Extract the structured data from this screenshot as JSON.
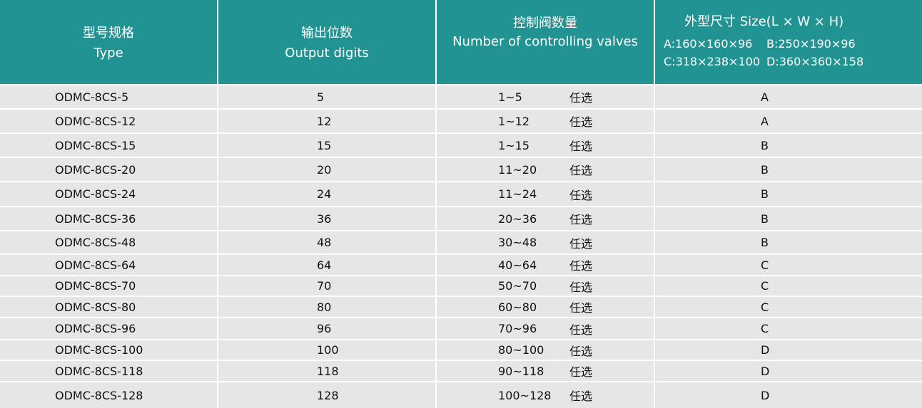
{
  "header": {
    "type": {
      "zh": "型号规格",
      "en": "Type"
    },
    "digits": {
      "zh": "输出位数",
      "en": "Output digits"
    },
    "valves": {
      "zh": "控制阀数量",
      "en": "Number of controlling valves"
    },
    "size": {
      "title": "外型尺寸 Size(L × W × H)",
      "a": "A:160×160×96",
      "b": "B:250×190×96",
      "c": "C:318×238×100",
      "d": "D:360×360×158"
    }
  },
  "colors": {
    "header_bg": "#229393",
    "row_bg": "#e6e6e6"
  },
  "rows": [
    {
      "type": "ODMC-8CS-5",
      "digits": "5",
      "range": "1~5",
      "opt": "任选",
      "size": "A"
    },
    {
      "type": "ODMC-8CS-12",
      "digits": "12",
      "range": "1~12",
      "opt": "任选",
      "size": "A"
    },
    {
      "type": "ODMC-8CS-15",
      "digits": "15",
      "range": "1~15",
      "opt": "任选",
      "size": "B"
    },
    {
      "type": "ODMC-8CS-20",
      "digits": "20",
      "range": "11~20",
      "opt": "任选",
      "size": "B"
    },
    {
      "type": "ODMC-8CS-24",
      "digits": "24",
      "range": "11~24",
      "opt": "任选",
      "size": "B"
    },
    {
      "type": "ODMC-8CS-36",
      "digits": "36",
      "range": "20~36",
      "opt": "任选",
      "size": "B"
    },
    {
      "type": "ODMC-8CS-48",
      "digits": "48",
      "range": "30~48",
      "opt": "任选",
      "size": "B"
    },
    {
      "type": "ODMC-8CS-64",
      "digits": "64",
      "range": "40~64",
      "opt": "任选",
      "size": "C"
    },
    {
      "type": "ODMC-8CS-70",
      "digits": "70",
      "range": "50~70",
      "opt": "任选",
      "size": "C"
    },
    {
      "type": "ODMC-8CS-80",
      "digits": "80",
      "range": "60~80",
      "opt": "任选",
      "size": "C"
    },
    {
      "type": "ODMC-8CS-96",
      "digits": "96",
      "range": "70~96",
      "opt": "任选",
      "size": "C"
    },
    {
      "type": "ODMC-8CS-100",
      "digits": "100",
      "range": "80~100",
      "opt": "任选",
      "size": "D"
    },
    {
      "type": "ODMC-8CS-118",
      "digits": "118",
      "range": "90~118",
      "opt": "任选",
      "size": "D"
    },
    {
      "type": "ODMC-8CS-128",
      "digits": "128",
      "range": "100~128",
      "opt": "任选",
      "size": "D"
    }
  ]
}
